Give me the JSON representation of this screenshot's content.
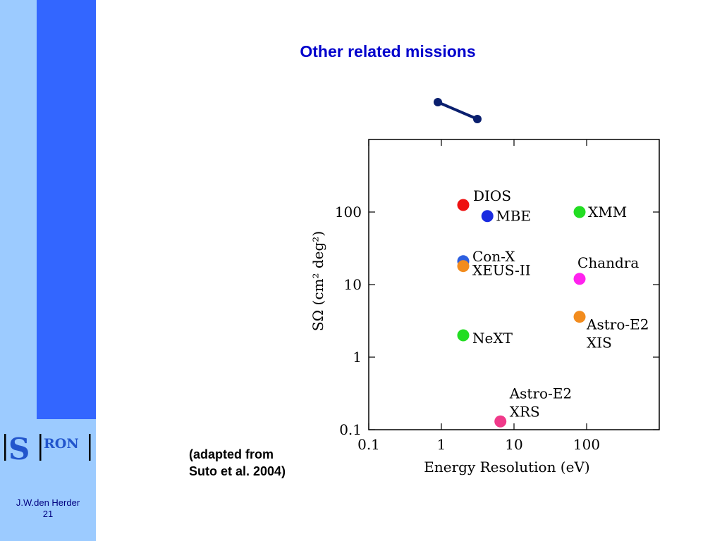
{
  "slide": {
    "title": "Other related missions",
    "caption_line1": "(adapted from",
    "caption_line2": "Suto et al. 2004)",
    "author": "J.W.den Herder",
    "page_number": "21",
    "logo_text_left": "S",
    "logo_text_right": "RON",
    "colors": {
      "title": "#0000cc",
      "sidebar_light": "#9ccbff",
      "sidebar_dark": "#3366ff",
      "dumbbell": "#0a1f6e"
    }
  },
  "chart_data": {
    "type": "scatter",
    "xlabel": "Energy Resolution (eV)",
    "ylabel": "SΩ (cm² deg²)",
    "x_scale": "log",
    "y_scale": "log",
    "xlim": [
      0.1,
      1000
    ],
    "ylim": [
      0.1,
      1000
    ],
    "x_ticks": [
      0.1,
      1,
      10,
      100
    ],
    "x_tick_labels": [
      "0.1",
      "1",
      "10",
      "100"
    ],
    "y_ticks": [
      0.1,
      1,
      10,
      100
    ],
    "y_tick_labels": [
      "0.1",
      "1",
      "10",
      "100"
    ],
    "grid": false,
    "points": [
      {
        "label": "DIOS",
        "x": 2.0,
        "y": 125,
        "color": "#ee1111"
      },
      {
        "label": "MBE",
        "x": 4.3,
        "y": 88,
        "color": "#1a2be0"
      },
      {
        "label": "XMM",
        "x": 80,
        "y": 100,
        "color": "#22dd22"
      },
      {
        "label": "Con-X",
        "x": 2.0,
        "y": 21,
        "color": "#2d5fe0"
      },
      {
        "label": "XEUS-II",
        "x": 2.0,
        "y": 18,
        "color": "#f28c1e"
      },
      {
        "label": "Chandra",
        "x": 80,
        "y": 12,
        "color": "#ff22ee"
      },
      {
        "label": "NeXT",
        "x": 2.0,
        "y": 2.0,
        "color": "#22dd22"
      },
      {
        "label": "Astro-E2 XIS",
        "label_lines": [
          "Astro-E2",
          "XIS"
        ],
        "x": 80,
        "y": 3.6,
        "color": "#f28c1e"
      },
      {
        "label": "Astro-E2 XRS",
        "label_lines": [
          "Astro-E2",
          "XRS"
        ],
        "x": 6.5,
        "y": 0.13,
        "color": "#f03a8a"
      }
    ]
  }
}
